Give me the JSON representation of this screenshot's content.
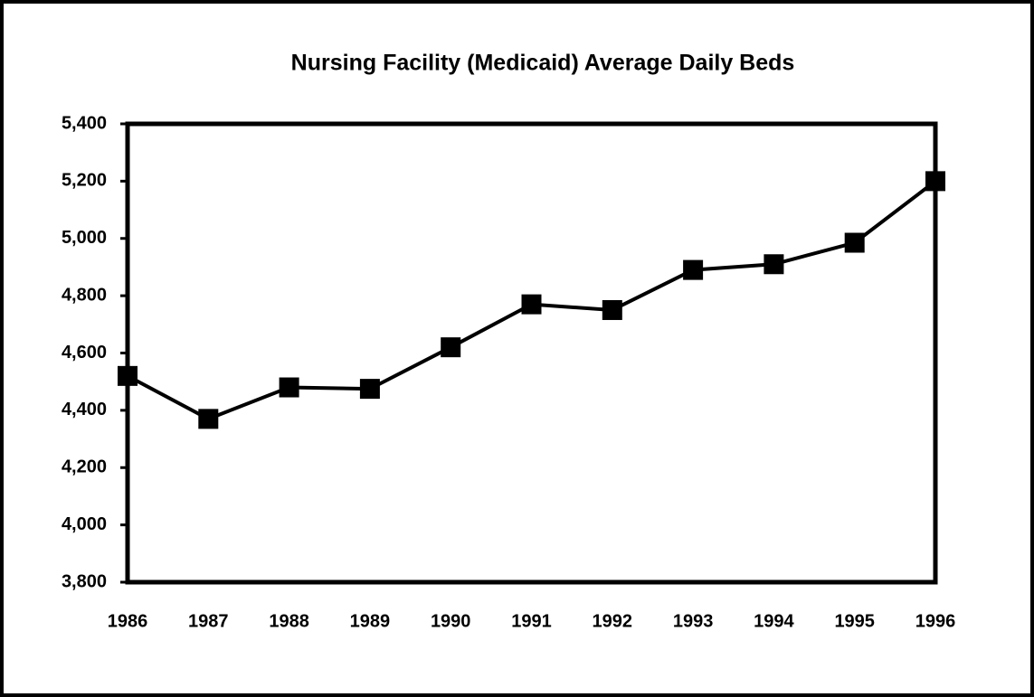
{
  "chart_data": {
    "type": "line",
    "title": "Nursing Facility (Medicaid) Average Daily Beds",
    "categories": [
      "1986",
      "1987",
      "1988",
      "1989",
      "1990",
      "1991",
      "1992",
      "1993",
      "1994",
      "1995",
      "1996"
    ],
    "series": [
      {
        "color": "#000000",
        "values": [
          4520,
          4370,
          4480,
          4475,
          4620,
          4770,
          4750,
          4890,
          4910,
          4985,
          5200
        ]
      }
    ],
    "ylim": [
      3800,
      5400
    ],
    "yticks": [
      {
        "value": 3800,
        "label": "3,800"
      },
      {
        "value": 4000,
        "label": "4,000"
      },
      {
        "value": 4200,
        "label": "4,200"
      },
      {
        "value": 4400,
        "label": "4,400"
      },
      {
        "value": 4600,
        "label": "4,600"
      },
      {
        "value": 4800,
        "label": "4,800"
      },
      {
        "value": 5000,
        "label": "5,000"
      },
      {
        "value": 5200,
        "label": "5,200"
      },
      {
        "value": 5400,
        "label": "5,400"
      }
    ],
    "grid": false
  }
}
